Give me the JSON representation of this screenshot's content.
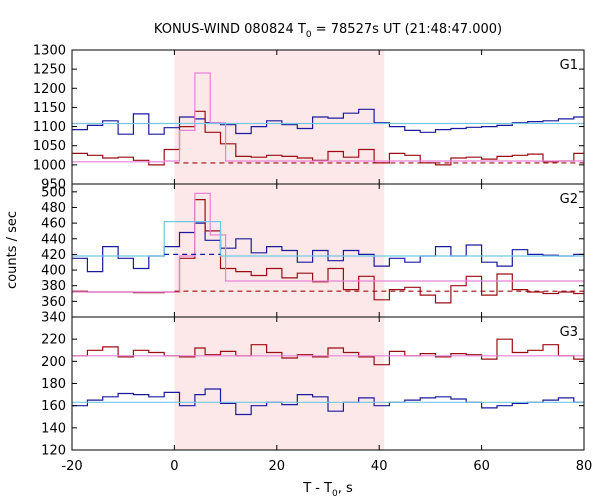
{
  "chart_data": {
    "type": "line",
    "title_prefix": "KONUS-WIND 080824 T",
    "title_sub": "0",
    "title_suffix": " = 78527s UT (21:48:47.000)",
    "xlabel_prefix": "T - T",
    "xlabel_sub": "0",
    "xlabel_suffix": ", s",
    "ylabel": "counts / sec",
    "xlim": [
      -20,
      80
    ],
    "x_ticks": [
      "-20",
      "0",
      "20",
      "40",
      "60",
      "80"
    ],
    "highlight_region": [
      0,
      41
    ],
    "colors": {
      "blue": "#1a1a9e",
      "red": "#9b0d13",
      "pink": "#e882d8",
      "cyan": "#73c8e6",
      "highlight": "#fde8e9"
    },
    "panels": [
      {
        "label": "G1",
        "ylim": [
          950,
          1300
        ],
        "y_ticks": [
          950,
          1000,
          1050,
          1100,
          1150,
          1200,
          1250,
          1300
        ],
        "series": [
          {
            "color": "blue",
            "edges": [
              -20,
              -17,
              -14,
              -11,
              -8,
              -5,
              -2,
              1,
              4,
              6,
              9,
              12,
              15,
              18,
              21,
              24,
              27,
              30,
              33,
              36,
              39,
              42,
              45,
              48,
              51,
              54,
              57,
              60,
              63,
              66,
              69,
              72,
              75,
              78,
              80
            ],
            "values": [
              1092,
              1103,
              1115,
              1080,
              1133,
              1080,
              1097,
              1125,
              1120,
              1110,
              1105,
              1082,
              1100,
              1115,
              1105,
              1095,
              1125,
              1122,
              1135,
              1145,
              1110,
              1100,
              1090,
              1085,
              1092,
              1095,
              1098,
              1100,
              1103,
              1110,
              1113,
              1115,
              1120,
              1125
            ]
          },
          {
            "color": "red",
            "edges": [
              -20,
              -17,
              -14,
              -11,
              -8,
              -5,
              -2,
              1,
              4,
              6,
              9,
              12,
              15,
              18,
              21,
              24,
              27,
              30,
              33,
              36,
              39,
              42,
              45,
              48,
              51,
              54,
              57,
              60,
              63,
              66,
              69,
              72,
              75,
              78,
              80
            ],
            "values": [
              1030,
              1025,
              1018,
              1020,
              1012,
              1000,
              1040,
              1100,
              1140,
              1085,
              1055,
              1022,
              1020,
              1025,
              1022,
              1018,
              1012,
              1035,
              1020,
              1040,
              1005,
              1030,
              1025,
              1005,
              1000,
              1018,
              1020,
              1015,
              1022,
              1025,
              1028,
              1008,
              1010,
              1030
            ]
          },
          {
            "color": "pink",
            "edges": [
              -20,
              -2,
              1,
              4,
              7,
              10,
              80
            ],
            "values": [
              1008,
              1010,
              1090,
              1240,
              1110,
              1010
            ]
          },
          {
            "color": "cyan",
            "edges": [
              -20,
              80
            ],
            "values": [
              1108
            ]
          }
        ],
        "background_dashed": {
          "color": "red",
          "value": 1005
        }
      },
      {
        "label": "G2",
        "ylim": [
          340,
          510
        ],
        "y_ticks": [
          340,
          360,
          380,
          400,
          420,
          440,
          460,
          480,
          500
        ],
        "series": [
          {
            "color": "blue",
            "edges": [
              -20,
              -17,
              -14,
              -11,
              -8,
              -5,
              -2,
              1,
              4,
              6,
              9,
              12,
              15,
              18,
              21,
              24,
              27,
              30,
              33,
              36,
              39,
              42,
              45,
              48,
              51,
              54,
              57,
              60,
              63,
              66,
              69,
              72,
              75,
              78,
              80
            ],
            "values": [
              415,
              398,
              430,
              415,
              402,
              418,
              430,
              448,
              460,
              438,
              428,
              440,
              422,
              430,
              425,
              410,
              425,
              412,
              425,
              420,
              405,
              415,
              410,
              418,
              430,
              418,
              432,
              410,
              405,
              426,
              420,
              419,
              418,
              420
            ]
          },
          {
            "color": "red",
            "edges": [
              -20,
              -17,
              -14,
              -11,
              -8,
              -5,
              -2,
              1,
              4,
              6,
              9,
              12,
              15,
              18,
              21,
              24,
              27,
              30,
              33,
              36,
              39,
              42,
              45,
              48,
              51,
              54,
              57,
              60,
              63,
              66,
              69,
              72,
              75,
              78,
              80
            ],
            "values": [
              373,
              372,
              372,
              372,
              371,
              371,
              372,
              415,
              490,
              450,
              402,
              398,
              393,
              402,
              390,
              396,
              385,
              402,
              375,
              392,
              362,
              375,
              378,
              368,
              358,
              380,
              392,
              368,
              395,
              375,
              372,
              370,
              372,
              370
            ]
          },
          {
            "color": "pink",
            "edges": [
              -20,
              1,
              4,
              7,
              10,
              80
            ],
            "values": [
              372,
              418,
              498,
              445,
              386
            ]
          },
          {
            "color": "cyan",
            "edges": [
              -20,
              -2,
              9,
              80
            ],
            "values": [
              418,
              462,
              418
            ]
          }
        ],
        "background_dashed": {
          "color": "red",
          "value": 373
        },
        "highlight_dashed": {
          "color": "blue",
          "value": 420,
          "range": [
            -2,
            9
          ]
        }
      },
      {
        "label": "G3",
        "ylim": [
          120,
          240
        ],
        "y_ticks": [
          120,
          140,
          160,
          180,
          200,
          220
        ],
        "series": [
          {
            "color": "red",
            "edges": [
              -20,
              -17,
              -14,
              -11,
              -8,
              -5,
              -2,
              1,
              4,
              6,
              9,
              12,
              15,
              18,
              21,
              24,
              27,
              30,
              33,
              36,
              39,
              42,
              45,
              48,
              51,
              54,
              57,
              60,
              63,
              66,
              69,
              72,
              75,
              78,
              80
            ],
            "values": [
              205,
              210,
              213,
              204,
              210,
              208,
              205,
              204,
              212,
              206,
              209,
              205,
              215,
              208,
              203,
              206,
              204,
              212,
              208,
              204,
              197,
              209,
              205,
              207,
              204,
              207,
              206,
              202,
              220,
              208,
              210,
              215,
              205,
              202
            ]
          },
          {
            "color": "blue",
            "edges": [
              -20,
              -17,
              -14,
              -11,
              -8,
              -5,
              -2,
              1,
              4,
              6,
              9,
              12,
              15,
              18,
              21,
              24,
              27,
              30,
              33,
              36,
              39,
              42,
              45,
              48,
              51,
              54,
              57,
              60,
              63,
              66,
              69,
              72,
              75,
              78,
              80
            ],
            "values": [
              160,
              165,
              168,
              171,
              170,
              168,
              172,
              160,
              170,
              175,
              162,
              152,
              160,
              163,
              161,
              170,
              168,
              155,
              163,
              167,
              160,
              163,
              165,
              167,
              168,
              166,
              163,
              158,
              160,
              162,
              163,
              165,
              167,
              163
            ]
          },
          {
            "color": "pink",
            "edges": [
              -20,
              80
            ],
            "values": [
              205
            ]
          },
          {
            "color": "cyan",
            "edges": [
              -20,
              80
            ],
            "values": [
              163
            ]
          }
        ]
      }
    ]
  }
}
